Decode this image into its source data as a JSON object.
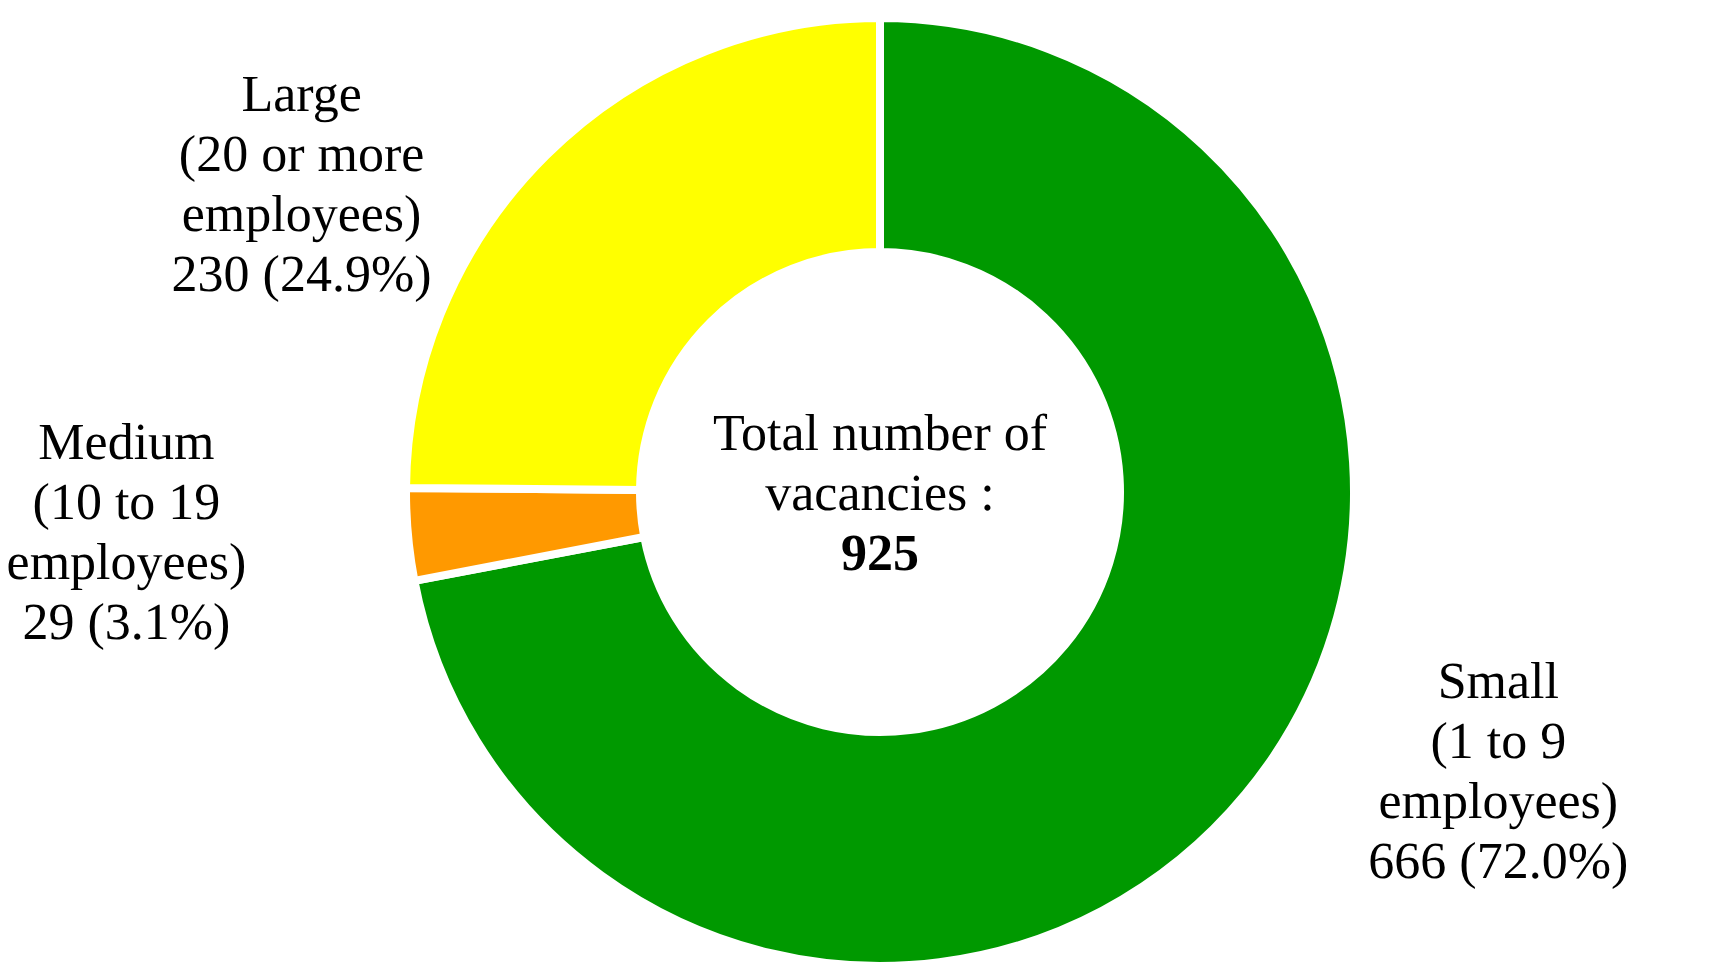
{
  "chart_data": {
    "type": "donut",
    "categories": [
      "Small (1 to 9 employees)",
      "Medium (10 to 19 employees)",
      "Large (20 or more employees)"
    ],
    "values": [
      666,
      29,
      230
    ],
    "colors": [
      "#009900",
      "#ff9900",
      "#ffff00"
    ],
    "value_labels": [
      "666 (72.0%)",
      "29 (3.1%)",
      "230 (24.9%)"
    ],
    "annotations": [
      "Total number of vacancies :",
      "925"
    ]
  }
}
